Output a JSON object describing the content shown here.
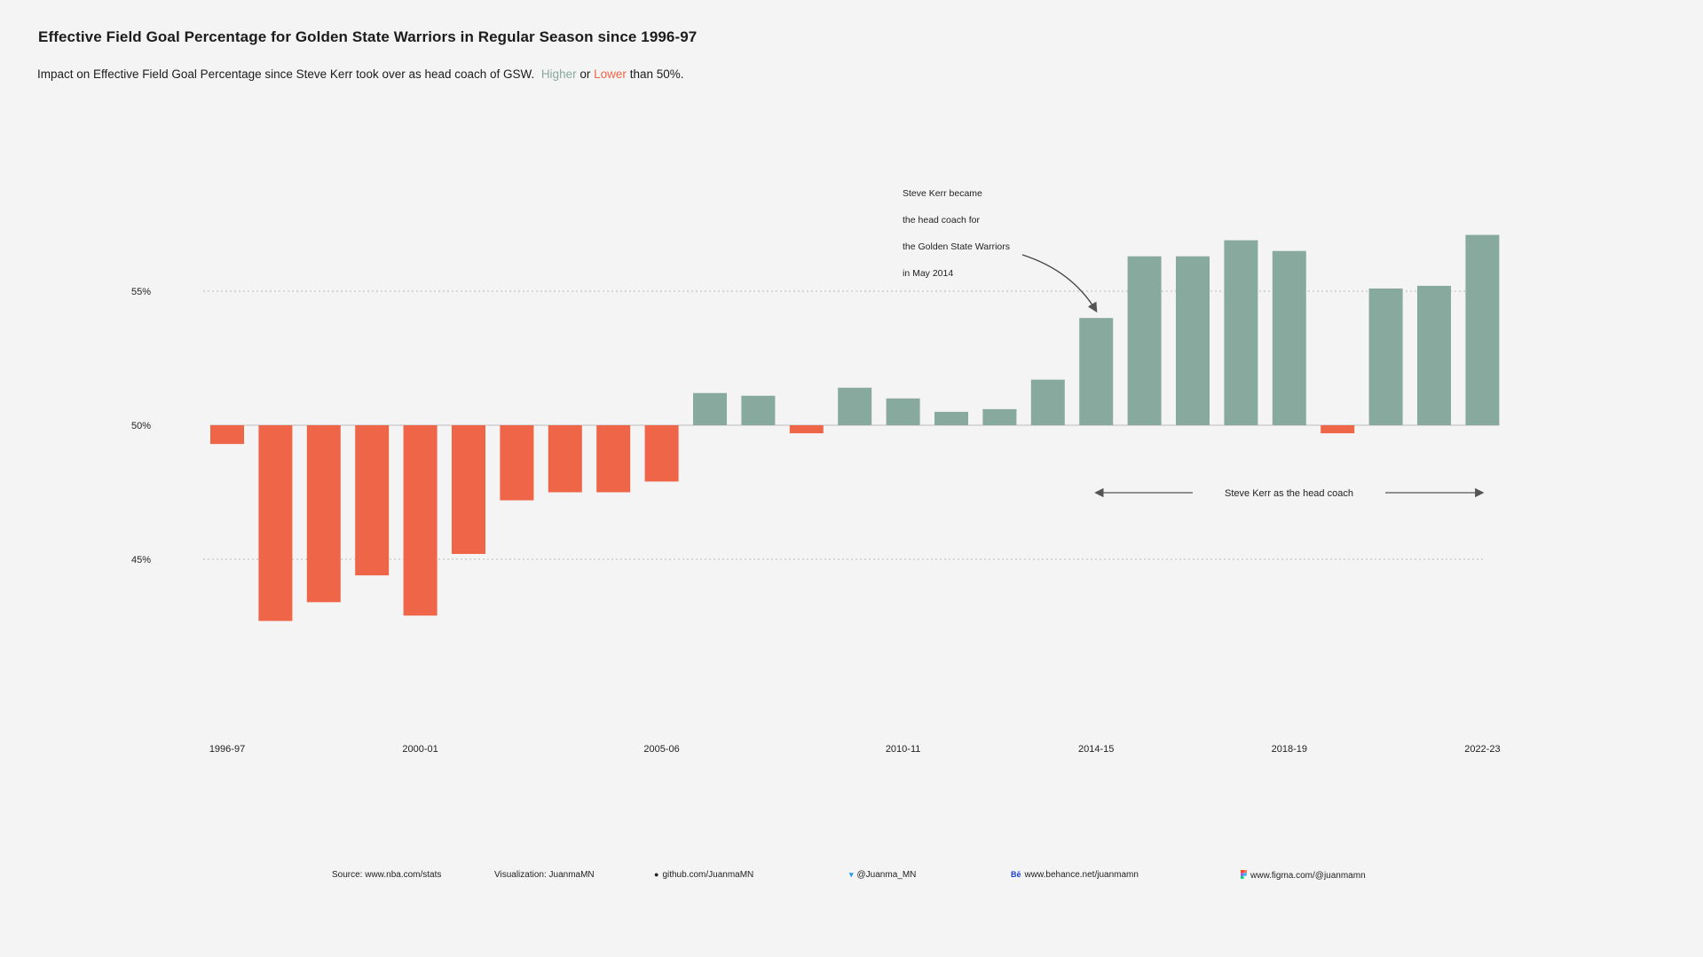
{
  "title": "Effective Field Goal Percentage for Golden State Warriors in Regular Season since 1996-97",
  "subtitle": {
    "text": "Impact on Effective Field Goal Percentage since Steve Kerr took over as head coach of GSW.",
    "higher_label": "Higher",
    "or_label": "or",
    "lower_label": "Lower",
    "suffix": "than 50%."
  },
  "colors": {
    "higher": "#88a99d",
    "lower": "#ef6548",
    "background": "#f4f4f4"
  },
  "chart_data": {
    "type": "bar",
    "baseline": 50,
    "ylim": [
      41,
      61
    ],
    "yticks": [
      {
        "value": 55,
        "label": "55%"
      },
      {
        "value": 50,
        "label": "50%"
      },
      {
        "value": 45,
        "label": "45%"
      }
    ],
    "grid": "dotted at 55% and 45%",
    "categories": [
      "1996-97",
      "1997-98",
      "1998-99",
      "1999-00",
      "2000-01",
      "2001-02",
      "2002-03",
      "2003-04",
      "2004-05",
      "2005-06",
      "2006-07",
      "2007-08",
      "2008-09",
      "2009-10",
      "2010-11",
      "2011-12",
      "2012-13",
      "2013-14",
      "2014-15",
      "2015-16",
      "2016-17",
      "2017-18",
      "2018-19",
      "2019-20",
      "2020-21",
      "2021-22",
      "2022-23"
    ],
    "values": [
      49.3,
      42.7,
      43.4,
      44.4,
      42.9,
      45.2,
      47.2,
      47.5,
      47.5,
      47.9,
      51.2,
      51.1,
      49.7,
      51.4,
      51.0,
      50.5,
      50.6,
      51.7,
      54.0,
      56.3,
      56.3,
      56.9,
      56.5,
      49.7,
      55.1,
      55.2,
      57.1
    ],
    "xtick_labels": [
      {
        "index": 0,
        "label": "1996-97"
      },
      {
        "index": 4,
        "label": "2000-01"
      },
      {
        "index": 9,
        "label": "2005-06"
      },
      {
        "index": 14,
        "label": "2010-11"
      },
      {
        "index": 18,
        "label": "2014-15"
      },
      {
        "index": 22,
        "label": "2018-19"
      },
      {
        "index": 26,
        "label": "2022-23"
      }
    ],
    "annotation": {
      "lines": [
        "Steve Kerr became",
        "the head coach for",
        "the Golden State Warriors",
        "in May 2014"
      ],
      "target_index": 18
    },
    "span_annotation": {
      "label": "Steve Kerr as the head coach",
      "from_index": 18,
      "to_index": 26
    }
  },
  "footer": {
    "source": "Source: www.nba.com/stats",
    "visualization": "Visualization: JuanmaMN",
    "github": "github.com/JuanmaMN",
    "twitter": "@Juanma_MN",
    "behance_icon": "Bē",
    "behance": "www.behance.net/juanmamn",
    "figma": "www.figma.com/@juanmamn"
  }
}
